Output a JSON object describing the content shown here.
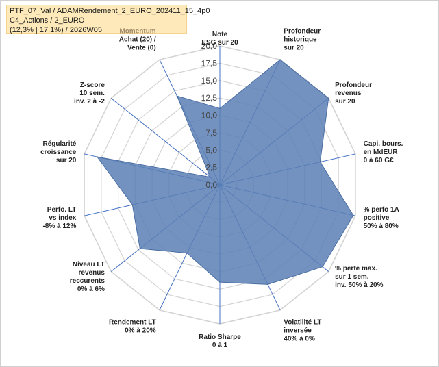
{
  "header": {
    "line1": "PTF_07_Val / ADAMRendement_2_EURO_202411_15_4p0",
    "line2": "C4_Actions / 2_EURO",
    "line3": "(12,3% | 17,1%) / 2026W05"
  },
  "chart_data": {
    "type": "radar",
    "rmin": 0,
    "rmax": 20,
    "ticks": [
      "0,0",
      "2,5",
      "5,0",
      "7,5",
      "10,0",
      "12,5",
      "15,0",
      "17,5",
      "20,0"
    ],
    "axes": [
      {
        "lines": [
          "Note",
          "ESG sur 20"
        ],
        "value": 11.0
      },
      {
        "lines": [
          "Profondeur",
          "historique",
          "sur 20"
        ],
        "value": 20.0
      },
      {
        "lines": [
          "Profondeur",
          "revenus",
          "sur 20"
        ],
        "value": 20.0
      },
      {
        "lines": [
          "Capi. bours.",
          "en MdEUR",
          "0 à 60 G€"
        ],
        "value": 14.8
      },
      {
        "lines": [
          "% perfo 1A",
          "positive",
          "50% à 80%"
        ],
        "value": 19.7
      },
      {
        "lines": [
          "% perte max.",
          "sur 1 sem.",
          "inv. 50% à 20%"
        ],
        "value": 18.9
      },
      {
        "lines": [
          "Volatilité LT",
          "inversée",
          "40% à 0%"
        ],
        "value": 15.9
      },
      {
        "lines": [
          "Ratio Sharpe",
          "0 à 1"
        ],
        "value": 14.0
      },
      {
        "lines": [
          "Rendement LT",
          "0% à 20%"
        ],
        "value": 10.9
      },
      {
        "lines": [
          "Niveau LT",
          "revenus",
          "reccurents",
          "0% à 6%"
        ],
        "value": 14.7
      },
      {
        "lines": [
          "Perfo. LT",
          "vs index",
          "-8% à 12%"
        ],
        "value": 12.9
      },
      {
        "lines": [
          "Régularité",
          "croissance",
          "sur 20"
        ],
        "value": 18.1
      },
      {
        "lines": [
          "Z-score",
          "10 sem.",
          "inv. 2 à -2"
        ],
        "value": 1.8
      },
      {
        "lines": [
          "Momentum",
          "Achat (20) /",
          "Vente (0)"
        ],
        "value": 14.2
      }
    ],
    "series_color": "#5b7fb5",
    "grid_color": "#d3d3d3",
    "spoke_color": "#4472c4",
    "legend": "none"
  }
}
